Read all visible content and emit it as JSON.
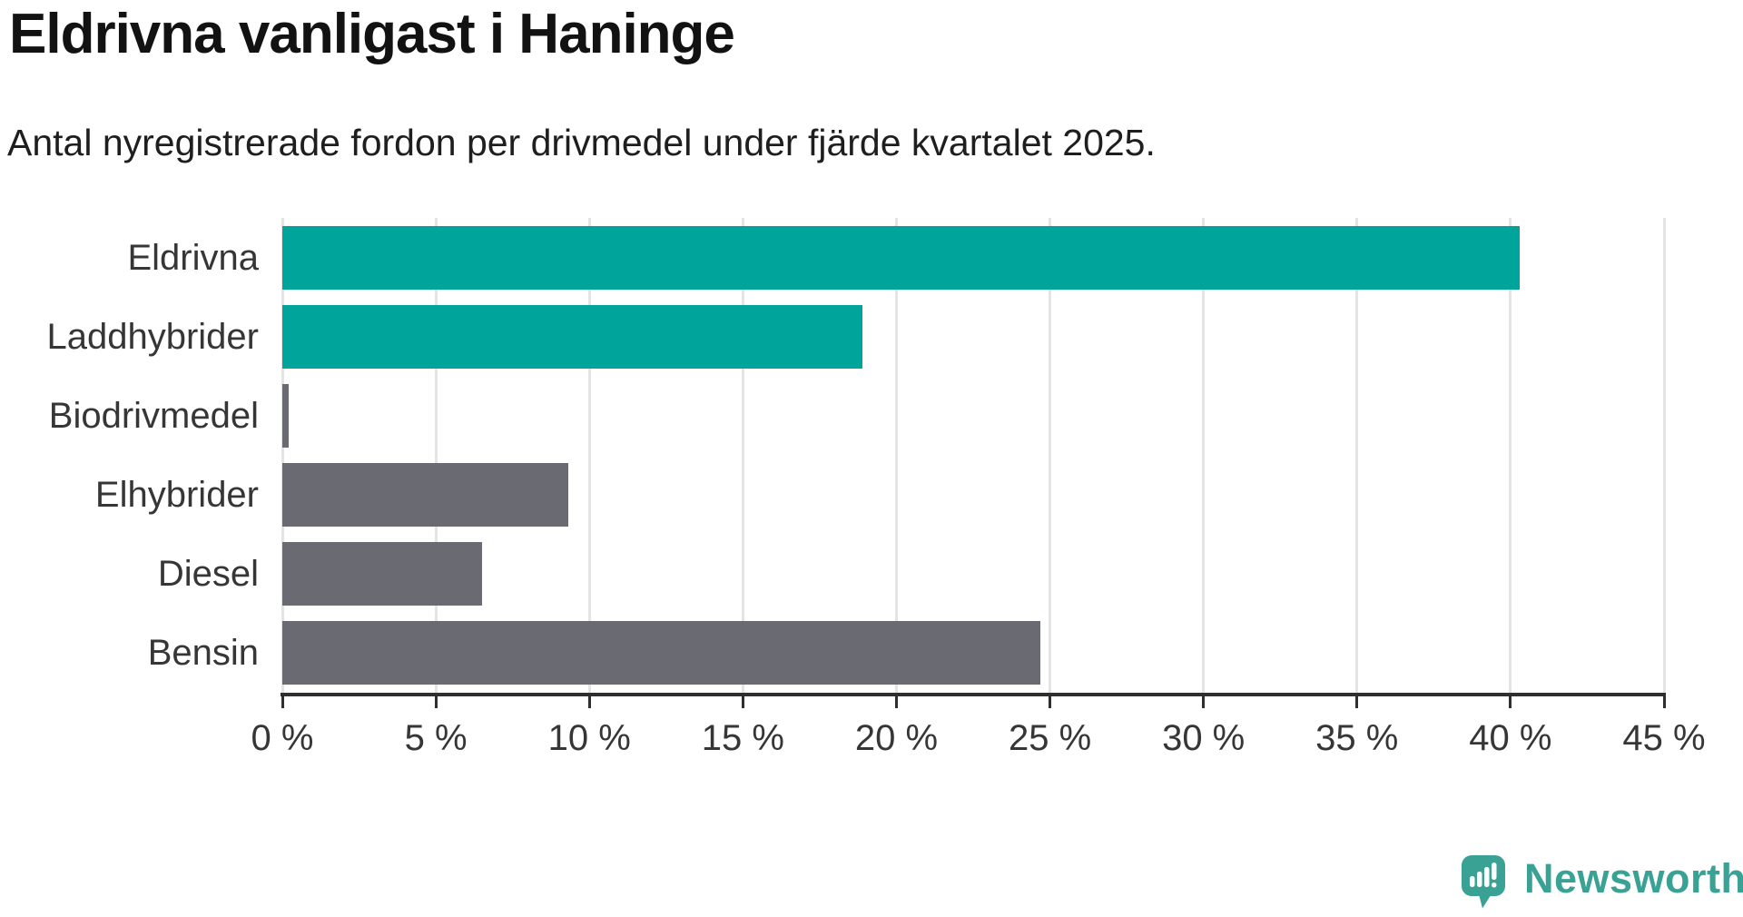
{
  "title": "Eldrivna vanligast i Haninge",
  "subtitle": "Antal nyregistrerade fordon per drivmedel under fjärde kvartalet 2025.",
  "branding": {
    "name": "Newsworthy",
    "logo_icon": "newsworthy-speech-bubble-chart-icon"
  },
  "colors": {
    "highlight_bar": "#00a49b",
    "default_bar": "#6a6a72",
    "gridline": "#e4e4e4",
    "axis": "#2f2f2f",
    "title_text": "#121212",
    "body_text": "#363636",
    "logo": "#3aa294"
  },
  "chart_data": {
    "type": "bar",
    "orientation": "horizontal",
    "title": "Eldrivna vanligast i Haninge",
    "subtitle": "Antal nyregistrerade fordon per drivmedel under fjärde kvartalet 2025.",
    "categories": [
      "Eldrivna",
      "Laddhybrider",
      "Biodrivmedel",
      "Elhybrider",
      "Diesel",
      "Bensin"
    ],
    "values": [
      40.3,
      18.9,
      0.2,
      9.3,
      6.5,
      24.7
    ],
    "unit": "%",
    "bar_colors": [
      "#00a49b",
      "#00a49b",
      "#6a6a72",
      "#6a6a72",
      "#6a6a72",
      "#6a6a72"
    ],
    "xlabel": "",
    "ylabel": "",
    "xlim": [
      0,
      45
    ],
    "x_ticks": [
      0,
      5,
      10,
      15,
      20,
      25,
      30,
      35,
      40,
      45
    ],
    "x_tick_labels": [
      "0 %",
      "5 %",
      "10 %",
      "15 %",
      "20 %",
      "25 %",
      "30 %",
      "35 %",
      "40 %",
      "45 %"
    ],
    "grid": true,
    "legend_position": "none"
  }
}
